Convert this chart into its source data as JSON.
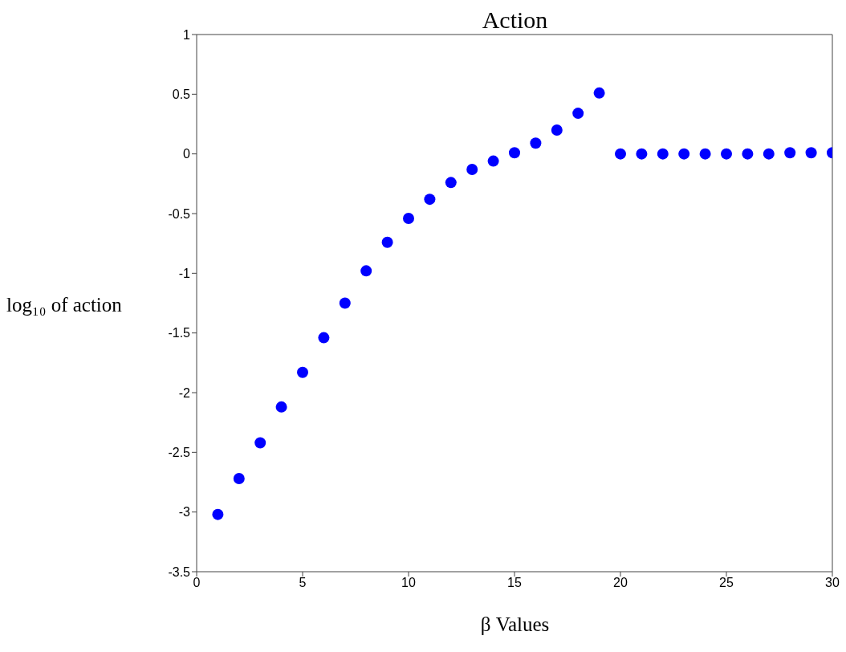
{
  "chart_data": {
    "type": "scatter",
    "title": "Action",
    "xlabel": "β Values",
    "ylabel": "log₁₀ of action",
    "x": [
      1,
      2,
      3,
      4,
      5,
      6,
      7,
      8,
      9,
      10,
      11,
      12,
      13,
      14,
      15,
      16,
      17,
      18,
      19,
      20,
      21,
      22,
      23,
      24,
      25,
      26,
      27,
      28,
      29,
      30
    ],
    "series": [
      {
        "color": "#0000ff",
        "values": [
          -3.02,
          -2.72,
          -2.42,
          -2.12,
          -1.83,
          -1.54,
          -1.25,
          -0.98,
          -0.74,
          -0.54,
          -0.38,
          -0.24,
          -0.13,
          -0.06,
          0.01,
          0.09,
          0.2,
          0.34,
          0.51,
          0,
          0,
          0,
          0,
          0,
          0,
          0,
          0,
          0.01,
          0.01,
          0.01
        ]
      }
    ],
    "xlim": [
      0,
      30
    ],
    "xticks": [
      0,
      5,
      10,
      15,
      20,
      25,
      30
    ],
    "ylim": [
      -3.5,
      1
    ],
    "yticks": [
      -3.5,
      -3,
      -2.5,
      -2,
      -1.5,
      -1,
      -0.5,
      0,
      0.5,
      1
    ],
    "marker": "circle"
  }
}
